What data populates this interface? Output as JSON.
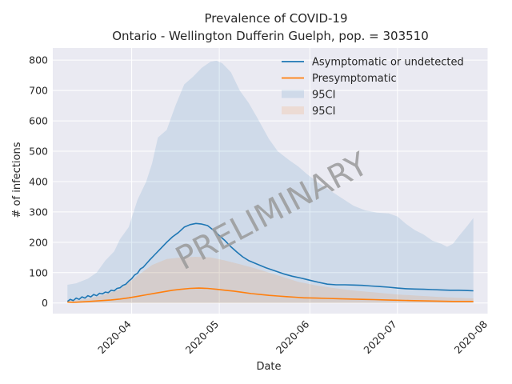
{
  "chart_data": {
    "type": "line",
    "title": "Prevalence of COVID-19",
    "subtitle": "Ontario - Wellington Dufferin Guelph, pop. = 303510",
    "xlabel": "Date",
    "ylabel": "# of infections",
    "x_ticks": [
      "2020-04",
      "2020-05",
      "2020-06",
      "2020-07",
      "2020-08"
    ],
    "y_ticks": [
      0,
      100,
      200,
      300,
      400,
      500,
      600,
      700,
      800
    ],
    "xlim": [
      "2020-03-05",
      "2020-08-01"
    ],
    "ylim": [
      -35,
      840
    ],
    "grid": true,
    "legend_position": "top-right",
    "watermark": "PRELIMINARY",
    "series": [
      {
        "name": "Asymptomatic or undetected",
        "kind": "line",
        "color": "#1f77b4",
        "points": [
          [
            "2020-03-10",
            5
          ],
          [
            "2020-03-11",
            12
          ],
          [
            "2020-03-12",
            8
          ],
          [
            "2020-03-13",
            16
          ],
          [
            "2020-03-14",
            12
          ],
          [
            "2020-03-15",
            20
          ],
          [
            "2020-03-16",
            16
          ],
          [
            "2020-03-17",
            24
          ],
          [
            "2020-03-18",
            20
          ],
          [
            "2020-03-19",
            28
          ],
          [
            "2020-03-20",
            24
          ],
          [
            "2020-03-21",
            32
          ],
          [
            "2020-03-22",
            30
          ],
          [
            "2020-03-23",
            36
          ],
          [
            "2020-03-24",
            34
          ],
          [
            "2020-03-25",
            42
          ],
          [
            "2020-03-26",
            40
          ],
          [
            "2020-03-27",
            48
          ],
          [
            "2020-03-28",
            50
          ],
          [
            "2020-03-29",
            58
          ],
          [
            "2020-03-30",
            62
          ],
          [
            "2020-03-31",
            72
          ],
          [
            "2020-04-01",
            80
          ],
          [
            "2020-04-02",
            92
          ],
          [
            "2020-04-03",
            98
          ],
          [
            "2020-04-04",
            112
          ],
          [
            "2020-04-05",
            118
          ],
          [
            "2020-04-07",
            140
          ],
          [
            "2020-04-09",
            160
          ],
          [
            "2020-04-11",
            180
          ],
          [
            "2020-04-13",
            200
          ],
          [
            "2020-04-15",
            218
          ],
          [
            "2020-04-17",
            232
          ],
          [
            "2020-04-19",
            250
          ],
          [
            "2020-04-21",
            258
          ],
          [
            "2020-04-23",
            262
          ],
          [
            "2020-04-25",
            260
          ],
          [
            "2020-04-27",
            255
          ],
          [
            "2020-04-29",
            240
          ],
          [
            "2020-05-01",
            222
          ],
          [
            "2020-05-03",
            205
          ],
          [
            "2020-05-05",
            185
          ],
          [
            "2020-05-07",
            168
          ],
          [
            "2020-05-09",
            152
          ],
          [
            "2020-05-11",
            140
          ],
          [
            "2020-05-14",
            128
          ],
          [
            "2020-05-17",
            116
          ],
          [
            "2020-05-20",
            106
          ],
          [
            "2020-05-23",
            96
          ],
          [
            "2020-05-26",
            88
          ],
          [
            "2020-05-29",
            82
          ],
          [
            "2020-06-01",
            75
          ],
          [
            "2020-06-04",
            68
          ],
          [
            "2020-06-07",
            62
          ],
          [
            "2020-06-10",
            60
          ],
          [
            "2020-06-13",
            60
          ],
          [
            "2020-06-16",
            59
          ],
          [
            "2020-06-19",
            58
          ],
          [
            "2020-06-22",
            56
          ],
          [
            "2020-06-25",
            54
          ],
          [
            "2020-06-28",
            52
          ],
          [
            "2020-07-01",
            49
          ],
          [
            "2020-07-04",
            47
          ],
          [
            "2020-07-07",
            46
          ],
          [
            "2020-07-10",
            45
          ],
          [
            "2020-07-13",
            44
          ],
          [
            "2020-07-16",
            43
          ],
          [
            "2020-07-19",
            42
          ],
          [
            "2020-07-22",
            42
          ],
          [
            "2020-07-25",
            41
          ],
          [
            "2020-07-27",
            40
          ]
        ]
      },
      {
        "name": "Presymptomatic",
        "kind": "line",
        "color": "#ff7f0e",
        "points": [
          [
            "2020-03-10",
            3
          ],
          [
            "2020-03-12",
            2
          ],
          [
            "2020-03-14",
            3
          ],
          [
            "2020-03-16",
            4
          ],
          [
            "2020-03-19",
            6
          ],
          [
            "2020-03-22",
            8
          ],
          [
            "2020-03-25",
            10
          ],
          [
            "2020-03-28",
            13
          ],
          [
            "2020-03-31",
            17
          ],
          [
            "2020-04-03",
            22
          ],
          [
            "2020-04-06",
            27
          ],
          [
            "2020-04-09",
            32
          ],
          [
            "2020-04-12",
            37
          ],
          [
            "2020-04-15",
            42
          ],
          [
            "2020-04-18",
            45
          ],
          [
            "2020-04-21",
            48
          ],
          [
            "2020-04-24",
            49
          ],
          [
            "2020-04-27",
            48
          ],
          [
            "2020-04-30",
            45
          ],
          [
            "2020-05-03",
            42
          ],
          [
            "2020-05-06",
            39
          ],
          [
            "2020-05-09",
            35
          ],
          [
            "2020-05-12",
            31
          ],
          [
            "2020-05-15",
            28
          ],
          [
            "2020-05-18",
            25
          ],
          [
            "2020-05-21",
            23
          ],
          [
            "2020-05-24",
            21
          ],
          [
            "2020-05-27",
            19
          ],
          [
            "2020-05-30",
            17
          ],
          [
            "2020-06-03",
            16
          ],
          [
            "2020-06-07",
            15
          ],
          [
            "2020-06-11",
            14
          ],
          [
            "2020-06-15",
            13
          ],
          [
            "2020-06-19",
            12
          ],
          [
            "2020-06-23",
            11
          ],
          [
            "2020-06-27",
            10
          ],
          [
            "2020-07-01",
            9
          ],
          [
            "2020-07-05",
            8
          ],
          [
            "2020-07-10",
            7
          ],
          [
            "2020-07-15",
            6
          ],
          [
            "2020-07-20",
            5
          ],
          [
            "2020-07-27",
            5
          ]
        ]
      },
      {
        "name": "95CI",
        "kind": "band",
        "color": "#1f77b4",
        "opacity": 0.13,
        "lower": [
          [
            "2020-03-10",
            0
          ],
          [
            "2020-07-27",
            0
          ]
        ],
        "upper": [
          [
            "2020-03-10",
            60
          ],
          [
            "2020-03-13",
            65
          ],
          [
            "2020-03-17",
            80
          ],
          [
            "2020-03-20",
            100
          ],
          [
            "2020-03-23",
            140
          ],
          [
            "2020-03-26",
            170
          ],
          [
            "2020-03-28",
            210
          ],
          [
            "2020-03-31",
            250
          ],
          [
            "2020-04-03",
            340
          ],
          [
            "2020-04-06",
            400
          ],
          [
            "2020-04-08",
            460
          ],
          [
            "2020-04-10",
            545
          ],
          [
            "2020-04-13",
            570
          ],
          [
            "2020-04-16",
            650
          ],
          [
            "2020-04-19",
            720
          ],
          [
            "2020-04-22",
            745
          ],
          [
            "2020-04-25",
            775
          ],
          [
            "2020-04-28",
            795
          ],
          [
            "2020-04-30",
            798
          ],
          [
            "2020-05-02",
            790
          ],
          [
            "2020-05-05",
            760
          ],
          [
            "2020-05-08",
            700
          ],
          [
            "2020-05-11",
            660
          ],
          [
            "2020-05-14",
            610
          ],
          [
            "2020-05-18",
            540
          ],
          [
            "2020-05-21",
            500
          ],
          [
            "2020-05-25",
            470
          ],
          [
            "2020-05-28",
            450
          ],
          [
            "2020-05-31",
            425
          ],
          [
            "2020-06-04",
            395
          ],
          [
            "2020-06-08",
            370
          ],
          [
            "2020-06-12",
            345
          ],
          [
            "2020-06-16",
            320
          ],
          [
            "2020-06-20",
            305
          ],
          [
            "2020-06-24",
            298
          ],
          [
            "2020-06-28",
            295
          ],
          [
            "2020-07-01",
            285
          ],
          [
            "2020-07-04",
            260
          ],
          [
            "2020-07-07",
            240
          ],
          [
            "2020-07-10",
            225
          ],
          [
            "2020-07-13",
            205
          ],
          [
            "2020-07-16",
            195
          ],
          [
            "2020-07-18",
            185
          ],
          [
            "2020-07-20",
            195
          ],
          [
            "2020-07-22",
            220
          ],
          [
            "2020-07-25",
            255
          ],
          [
            "2020-07-27",
            280
          ]
        ]
      },
      {
        "name": "95CI",
        "kind": "band",
        "color": "#ff7f0e",
        "opacity": 0.13,
        "lower": [
          [
            "2020-03-10",
            0
          ],
          [
            "2020-07-27",
            0
          ]
        ],
        "upper": [
          [
            "2020-03-10",
            5
          ],
          [
            "2020-03-16",
            12
          ],
          [
            "2020-03-22",
            25
          ],
          [
            "2020-03-28",
            45
          ],
          [
            "2020-04-03",
            90
          ],
          [
            "2020-04-08",
            125
          ],
          [
            "2020-04-13",
            145
          ],
          [
            "2020-04-18",
            150
          ],
          [
            "2020-04-23",
            152
          ],
          [
            "2020-04-28",
            150
          ],
          [
            "2020-05-03",
            140
          ],
          [
            "2020-05-08",
            128
          ],
          [
            "2020-05-13",
            115
          ],
          [
            "2020-05-18",
            100
          ],
          [
            "2020-05-23",
            85
          ],
          [
            "2020-05-28",
            70
          ],
          [
            "2020-06-03",
            58
          ],
          [
            "2020-06-10",
            48
          ],
          [
            "2020-06-17",
            40
          ],
          [
            "2020-06-24",
            34
          ],
          [
            "2020-07-01",
            28
          ],
          [
            "2020-07-08",
            24
          ],
          [
            "2020-07-15",
            20
          ],
          [
            "2020-07-22",
            17
          ],
          [
            "2020-07-27",
            15
          ]
        ]
      }
    ]
  }
}
